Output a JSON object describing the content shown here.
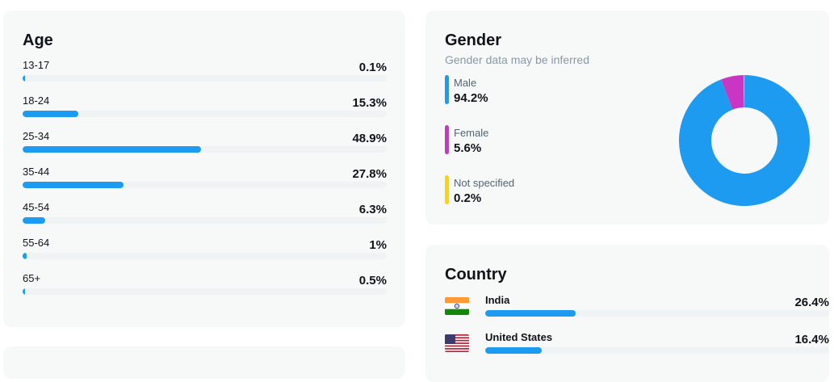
{
  "age": {
    "title": "Age",
    "rows": [
      {
        "label": "13-17",
        "value": "0.1%",
        "pct": 0.1
      },
      {
        "label": "18-24",
        "value": "15.3%",
        "pct": 15.3
      },
      {
        "label": "25-34",
        "value": "48.9%",
        "pct": 48.9
      },
      {
        "label": "35-44",
        "value": "27.8%",
        "pct": 27.8
      },
      {
        "label": "45-54",
        "value": "6.3%",
        "pct": 6.3
      },
      {
        "label": "55-64",
        "value": "1%",
        "pct": 1
      },
      {
        "label": "65+",
        "value": "0.5%",
        "pct": 0.5
      }
    ]
  },
  "gender": {
    "title": "Gender",
    "subtitle": "Gender data may be inferred",
    "items": [
      {
        "label": "Male",
        "value": "94.2%",
        "pct": 94.2,
        "color": "#1d9bf0"
      },
      {
        "label": "Female",
        "value": "5.6%",
        "pct": 5.6,
        "color": "#c936c4"
      },
      {
        "label": "Not specified",
        "value": "0.2%",
        "pct": 0.2,
        "color": "#ffd400"
      }
    ]
  },
  "country": {
    "title": "Country",
    "rows": [
      {
        "name": "India",
        "value": "26.4%",
        "pct": 26.4,
        "flag": "india-flag-icon"
      },
      {
        "name": "United States",
        "value": "16.4%",
        "pct": 16.4,
        "flag": "us-flag-icon"
      }
    ]
  },
  "colors": {
    "accent": "#1d9bf0",
    "track": "#eff3f4",
    "card": "#f7f9f9"
  }
}
